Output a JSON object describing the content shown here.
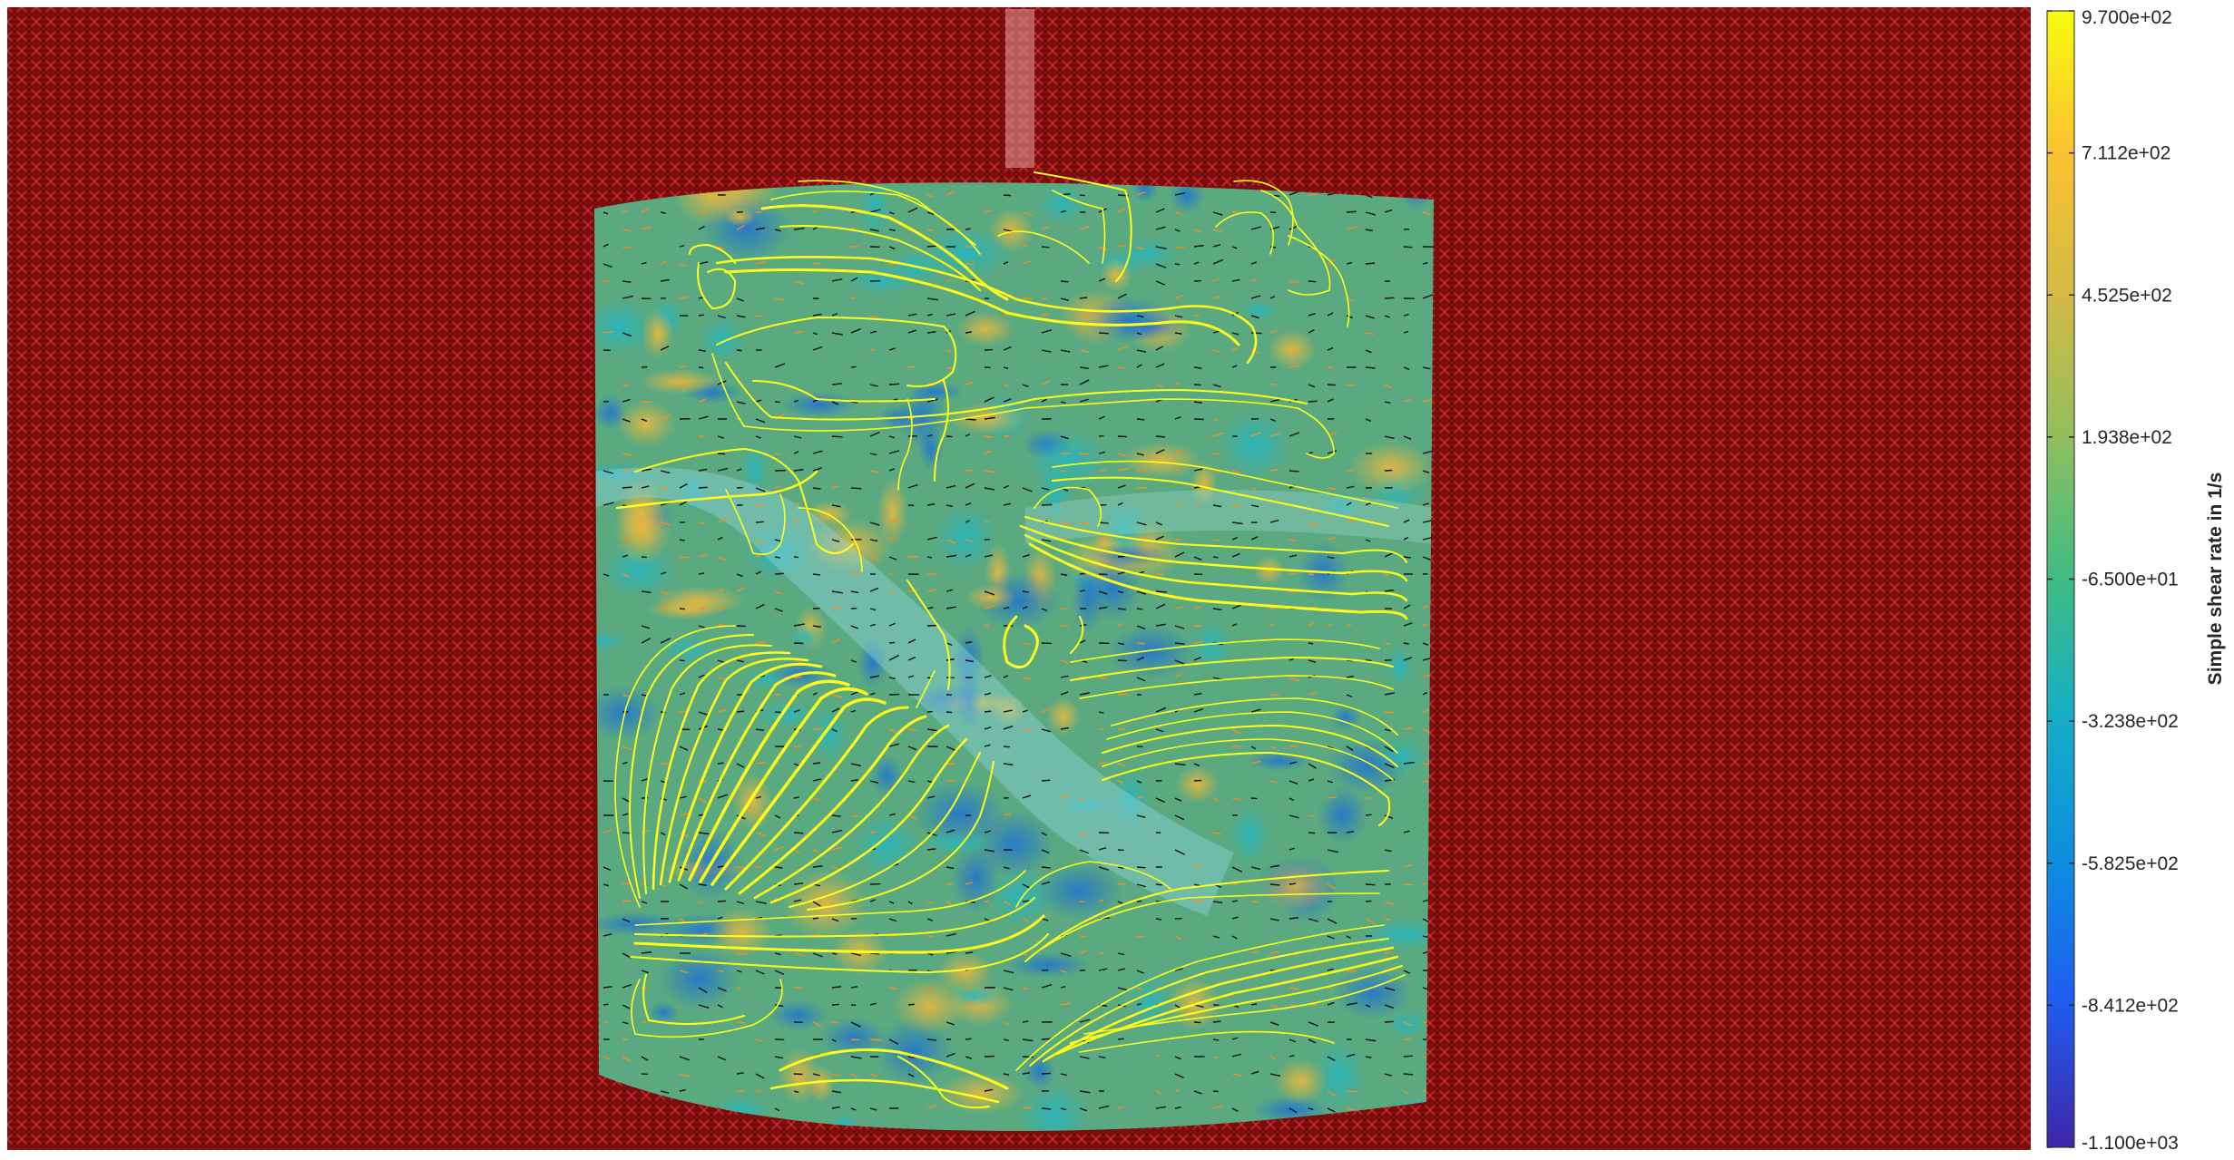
{
  "figure": {
    "colors": {
      "masked_region": "#7a0d0d",
      "mask_marker": "#e23030",
      "field_base": "#5aa981",
      "streamline": "#ffff1a",
      "vector_dark": "#111111",
      "vector_orange": "#ff8a1f",
      "rod": "#e8a2a2"
    }
  },
  "chart_data": {
    "type": "heatmap",
    "description_kind": "PIV shear-rate field with streamlines and velocity vectors",
    "colorbar": {
      "label": "Simple shear rate in 1/s",
      "clim": [
        -1100,
        970
      ],
      "colormap": "parula",
      "tick_values": [
        970,
        711.2,
        452.5,
        193.8,
        -65,
        -323.8,
        -582.5,
        -841.2,
        -1100
      ],
      "tick_labels": [
        "9.700e+02",
        "7.112e+02",
        "4.525e+02",
        "1.938e+02",
        "-6.500e+01",
        "-3.238e+02",
        "-5.825e+02",
        "-8.412e+02",
        "-1.100e+03"
      ]
    },
    "overlays": [
      "masked-region-crosses",
      "velocity-vectors",
      "streamlines"
    ]
  }
}
